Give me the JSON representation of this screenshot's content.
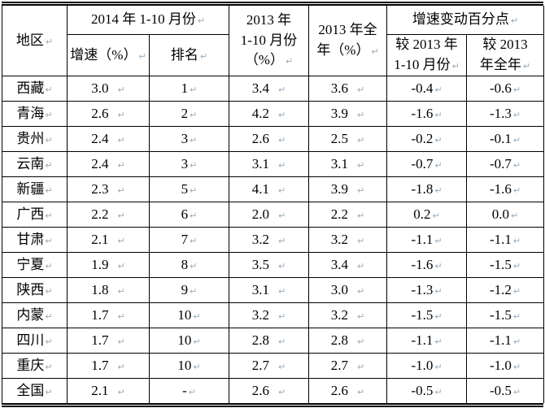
{
  "marks": {
    "pilcrow": "↵"
  },
  "table": {
    "header": {
      "region": "地区",
      "period_2014": "2014 年 1-10 月份",
      "growth_pct": "增速（%）",
      "rank": "排名",
      "period_2013_oct": "2013 年\n1-10 月份\n（%）",
      "year_2013_full": "2013 年全\n年（%）",
      "change_title": "增速变动百分点",
      "change_vs_oct": "较 2013 年\n1-10 月份",
      "change_vs_full": "较 2013\n年全年"
    },
    "rows": [
      {
        "region": "西藏",
        "growth2014": "3.0",
        "rank2014": "1",
        "y2013oct": "3.4",
        "y2013full": "3.6",
        "chg_vs_oct": "-0.4",
        "chg_vs_full": "-0.6"
      },
      {
        "region": "青海",
        "growth2014": "2.6",
        "rank2014": "2",
        "y2013oct": "4.2",
        "y2013full": "3.9",
        "chg_vs_oct": "-1.6",
        "chg_vs_full": "-1.3"
      },
      {
        "region": "贵州",
        "growth2014": "2.4",
        "rank2014": "3",
        "y2013oct": "2.6",
        "y2013full": "2.5",
        "chg_vs_oct": "-0.2",
        "chg_vs_full": "-0.1"
      },
      {
        "region": "云南",
        "growth2014": "2.4",
        "rank2014": "3",
        "y2013oct": "3.1",
        "y2013full": "3.1",
        "chg_vs_oct": "-0.7",
        "chg_vs_full": "-0.7"
      },
      {
        "region": "新疆",
        "growth2014": "2.3",
        "rank2014": "5",
        "y2013oct": "4.1",
        "y2013full": "3.9",
        "chg_vs_oct": "-1.8",
        "chg_vs_full": "-1.6"
      },
      {
        "region": "广西",
        "growth2014": "2.2",
        "rank2014": "6",
        "y2013oct": "2.0",
        "y2013full": "2.2",
        "chg_vs_oct": "0.2",
        "chg_vs_full": "0.0"
      },
      {
        "region": "甘肃",
        "growth2014": "2.1",
        "rank2014": "7",
        "y2013oct": "3.2",
        "y2013full": "3.2",
        "chg_vs_oct": "-1.1",
        "chg_vs_full": "-1.1"
      },
      {
        "region": "宁夏",
        "growth2014": "1.9",
        "rank2014": "8",
        "y2013oct": "3.5",
        "y2013full": "3.4",
        "chg_vs_oct": "-1.6",
        "chg_vs_full": "-1.5"
      },
      {
        "region": "陕西",
        "growth2014": "1.8",
        "rank2014": "9",
        "y2013oct": "3.1",
        "y2013full": "3.0",
        "chg_vs_oct": "-1.3",
        "chg_vs_full": "-1.2"
      },
      {
        "region": "内蒙",
        "growth2014": "1.7",
        "rank2014": "10",
        "y2013oct": "3.2",
        "y2013full": "3.2",
        "chg_vs_oct": "-1.5",
        "chg_vs_full": "-1.5"
      },
      {
        "region": "四川",
        "growth2014": "1.7",
        "rank2014": "10",
        "y2013oct": "2.8",
        "y2013full": "2.8",
        "chg_vs_oct": "-1.1",
        "chg_vs_full": "-1.1"
      },
      {
        "region": "重庆",
        "growth2014": "1.7",
        "rank2014": "10",
        "y2013oct": "2.7",
        "y2013full": "2.7",
        "chg_vs_oct": "-1.0",
        "chg_vs_full": "-1.0"
      },
      {
        "region": "全国",
        "growth2014": "2.1",
        "rank2014": "-",
        "y2013oct": "2.6",
        "y2013full": "2.6",
        "chg_vs_oct": "-0.5",
        "chg_vs_full": "-0.5"
      }
    ]
  }
}
